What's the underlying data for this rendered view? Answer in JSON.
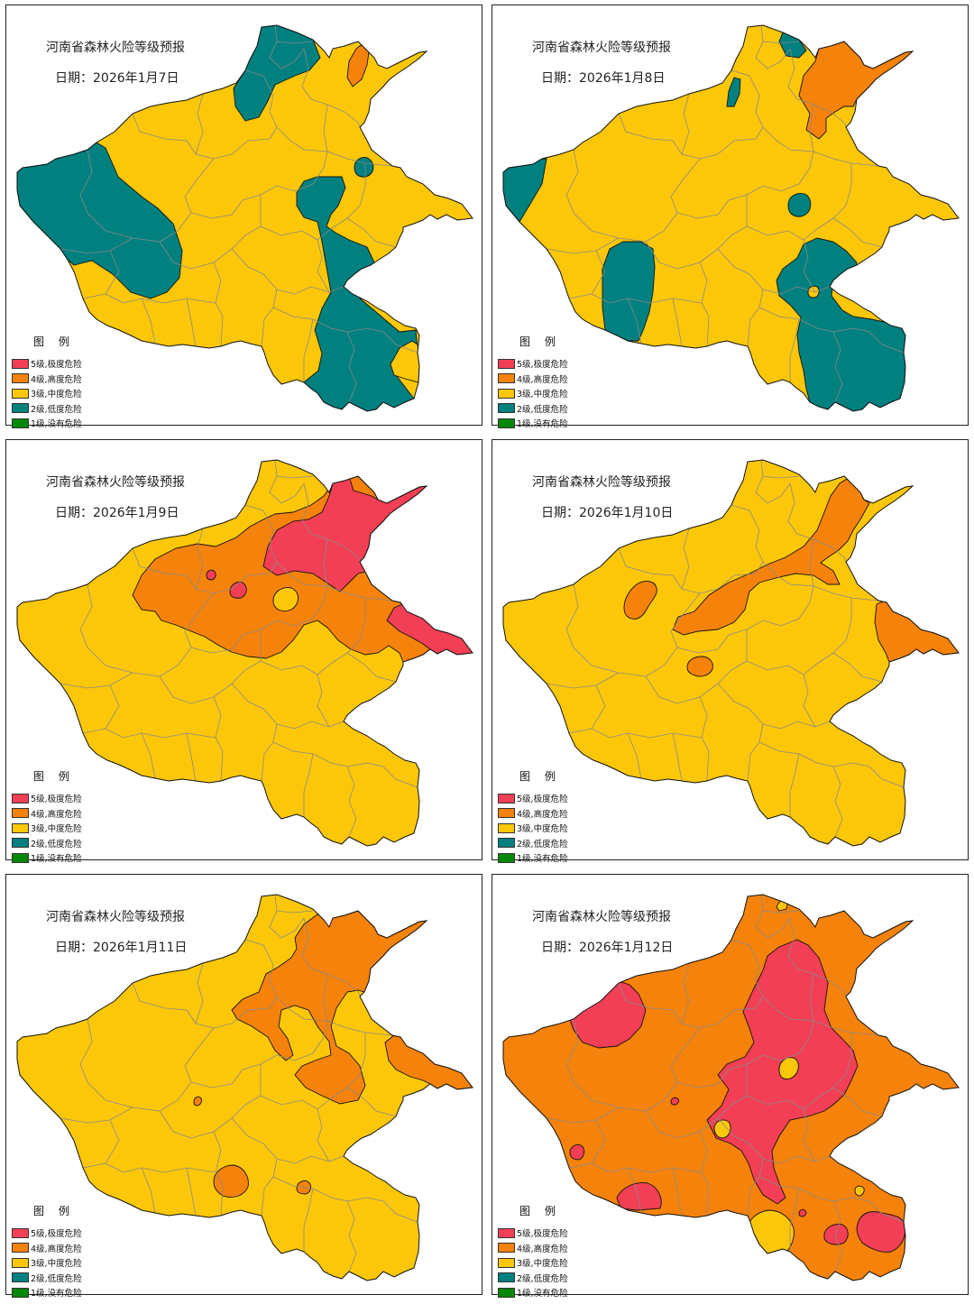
{
  "map_title": "河南省森林火险等级预报",
  "date_prefix": "日期：",
  "legend": {
    "title": "图 例",
    "items": [
      {
        "label": "5级,极度危险",
        "color": "#f23f55"
      },
      {
        "label": "4级,高度危险",
        "color": "#f5820a"
      },
      {
        "label": "3级,中度危险",
        "color": "#fcc708"
      },
      {
        "label": "2级,低度危险",
        "color": "#00807f"
      },
      {
        "label": "1级,没有危险",
        "color": "#078707"
      }
    ]
  },
  "panels": [
    {
      "date": "2026年1月7日",
      "base_level": 3
    },
    {
      "date": "2026年1月8日",
      "base_level": 3
    },
    {
      "date": "2026年1月9日",
      "base_level": 3
    },
    {
      "date": "2026年1月10日",
      "base_level": 3
    },
    {
      "date": "2026年1月11日",
      "base_level": 3
    },
    {
      "date": "2026年1月12日",
      "base_level": 4
    }
  ]
}
